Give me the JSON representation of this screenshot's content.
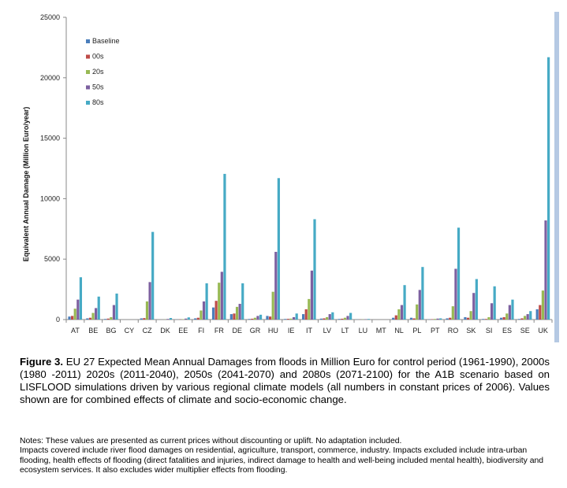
{
  "chart_data": {
    "type": "bar",
    "ylabel": "Equivalent Annual Damage (Million Euro/year)",
    "xlabel": "",
    "ylim": [
      0,
      25000
    ],
    "yticks": [
      0,
      5000,
      10000,
      15000,
      20000,
      25000
    ],
    "legend_position": "top-left",
    "grid": false,
    "categories": [
      "AT",
      "BE",
      "BG",
      "CY",
      "CZ",
      "DK",
      "EE",
      "FI",
      "FR",
      "DE",
      "GR",
      "HU",
      "IE",
      "IT",
      "LV",
      "LT",
      "LU",
      "MT",
      "NL",
      "PL",
      "PT",
      "RO",
      "SK",
      "SI",
      "ES",
      "SE",
      "UK"
    ],
    "series": [
      {
        "name": "Baseline",
        "color": "#4a7ebb",
        "values": [
          250,
          100,
          50,
          0,
          100,
          0,
          10,
          100,
          1000,
          450,
          50,
          300,
          50,
          450,
          80,
          50,
          10,
          0,
          150,
          150,
          20,
          100,
          200,
          50,
          150,
          50,
          850
        ]
      },
      {
        "name": "00s",
        "color": "#be4b48",
        "values": [
          300,
          150,
          80,
          0,
          120,
          0,
          15,
          150,
          1550,
          500,
          70,
          250,
          60,
          850,
          100,
          70,
          10,
          0,
          350,
          100,
          30,
          150,
          150,
          50,
          200,
          100,
          1200
        ]
      },
      {
        "name": "20s",
        "color": "#98b954",
        "values": [
          900,
          550,
          200,
          0,
          1500,
          10,
          30,
          750,
          3050,
          1050,
          150,
          2300,
          80,
          1700,
          200,
          150,
          15,
          0,
          850,
          1250,
          50,
          1100,
          700,
          200,
          500,
          300,
          2400
        ]
      },
      {
        "name": "50s",
        "color": "#7d60a0",
        "values": [
          1650,
          950,
          1200,
          0,
          3100,
          50,
          80,
          1500,
          3950,
          1300,
          300,
          5600,
          200,
          4050,
          450,
          300,
          30,
          0,
          1200,
          2450,
          80,
          4200,
          2200,
          1350,
          1200,
          450,
          8200
        ]
      },
      {
        "name": "80s",
        "color": "#46aac5",
        "values": [
          3500,
          1900,
          2150,
          0,
          7250,
          130,
          180,
          3000,
          12050,
          3000,
          400,
          11700,
          500,
          8300,
          600,
          550,
          50,
          0,
          2850,
          4350,
          100,
          7600,
          3350,
          2750,
          1650,
          700,
          21700
        ]
      }
    ]
  },
  "caption": {
    "label": "Figure 3.",
    "text": " EU 27 Expected Mean Annual Damages from floods in Million Euro for control period (1961-1990), 2000s (1980 -2011) 2020s (2011-2040), 2050s (2041-2070) and 2080s (2071-2100) for the A1B scenario based on LISFLOOD simulations driven by various regional climate models (all numbers in constant prices of 2006).  Values shown are for combined effects of climate and socio-economic change."
  },
  "notes": [
    "Notes: These values are presented as current prices without discounting or uplift. No adaptation included.",
    "Impacts covered include river flood damages on residential, agriculture, transport, commerce, industry. Impacts excluded include intra-urban flooding, health effects of flooding (direct fatalities and injuries, indirect damage to health and well-being included mental health), biodiversity and ecosystem services. It also excludes wider multiplier effects from flooding."
  ]
}
